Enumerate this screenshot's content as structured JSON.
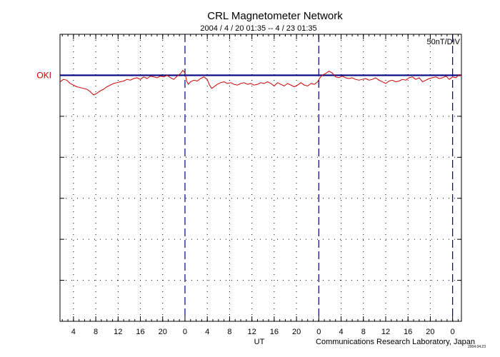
{
  "chart_data": {
    "type": "line",
    "title": "CRL Magnetometer Network",
    "subtitle": "2004 / 4 / 20   01:35 --  4 / 23   01:35",
    "scale_label": "50nT/DIV",
    "xlabel": "UT",
    "credit": "Communications Research Laboratory, Japan",
    "credit_small": "2004.04.23",
    "xlim": [
      1.583,
      73.583
    ],
    "x_unit": "hours since 2004-04-20 00:00 UT",
    "x_tick_labels": [
      {
        "x": 4,
        "label": "4"
      },
      {
        "x": 8,
        "label": "8"
      },
      {
        "x": 12,
        "label": "12"
      },
      {
        "x": 16,
        "label": "16"
      },
      {
        "x": 20,
        "label": "20"
      },
      {
        "x": 24,
        "label": "0"
      },
      {
        "x": 28,
        "label": "4"
      },
      {
        "x": 32,
        "label": "8"
      },
      {
        "x": 36,
        "label": "12"
      },
      {
        "x": 40,
        "label": "16"
      },
      {
        "x": 44,
        "label": "20"
      },
      {
        "x": 48,
        "label": "0"
      },
      {
        "x": 52,
        "label": "4"
      },
      {
        "x": 56,
        "label": "8"
      },
      {
        "x": 60,
        "label": "12"
      },
      {
        "x": 64,
        "label": "16"
      },
      {
        "x": 68,
        "label": "20"
      },
      {
        "x": 72,
        "label": "0"
      }
    ],
    "day_boundaries": [
      24,
      48,
      72
    ],
    "ylim": [
      -300,
      50
    ],
    "y_div": 50,
    "grid": true,
    "colors": {
      "trace": "#cc0000",
      "baseline": "#000080",
      "day_line": "#000080",
      "station": "#cc0000"
    },
    "series": [
      {
        "name": "OKI",
        "baseline": 0,
        "points": [
          [
            1.6,
            -8
          ],
          [
            2.2,
            -5
          ],
          [
            2.8,
            -6
          ],
          [
            3.4,
            -10
          ],
          [
            4,
            -12
          ],
          [
            4.6,
            -14
          ],
          [
            5.2,
            -15
          ],
          [
            5.8,
            -16
          ],
          [
            6.4,
            -17
          ],
          [
            7,
            -20
          ],
          [
            7.6,
            -24
          ],
          [
            8.2,
            -22
          ],
          [
            8.8,
            -19
          ],
          [
            9.4,
            -17
          ],
          [
            10,
            -14
          ],
          [
            10.6,
            -12
          ],
          [
            11.2,
            -10
          ],
          [
            11.8,
            -9
          ],
          [
            12.4,
            -8
          ],
          [
            13,
            -7
          ],
          [
            13.6,
            -5
          ],
          [
            14.2,
            -6
          ],
          [
            14.8,
            -4
          ],
          [
            15.4,
            -3
          ],
          [
            16,
            -5
          ],
          [
            16.6,
            -2
          ],
          [
            17.2,
            -4
          ],
          [
            17.8,
            -1
          ],
          [
            18.4,
            -2
          ],
          [
            19,
            -3
          ],
          [
            19.6,
            -1
          ],
          [
            20.2,
            -2
          ],
          [
            20.8,
            0
          ],
          [
            21.4,
            -3
          ],
          [
            22,
            -5
          ],
          [
            22.6,
            -1
          ],
          [
            23.2,
            2
          ],
          [
            23.6,
            6
          ],
          [
            24,
            3
          ],
          [
            24.3,
            -7
          ],
          [
            24.6,
            -11
          ],
          [
            25,
            -8
          ],
          [
            25.6,
            -6
          ],
          [
            26.2,
            -7
          ],
          [
            26.8,
            -4
          ],
          [
            27.4,
            -2
          ],
          [
            28,
            -5
          ],
          [
            28.4,
            -12
          ],
          [
            28.8,
            -16
          ],
          [
            29.2,
            -14
          ],
          [
            29.8,
            -11
          ],
          [
            30.4,
            -9
          ],
          [
            31,
            -8
          ],
          [
            31.6,
            -10
          ],
          [
            32.2,
            -9
          ],
          [
            32.8,
            -11
          ],
          [
            33.4,
            -12
          ],
          [
            34,
            -10
          ],
          [
            34.6,
            -9
          ],
          [
            35.2,
            -11
          ],
          [
            35.8,
            -10
          ],
          [
            36.4,
            -12
          ],
          [
            37,
            -11
          ],
          [
            37.6,
            -9
          ],
          [
            38.2,
            -10
          ],
          [
            38.8,
            -8
          ],
          [
            39.4,
            -10
          ],
          [
            40,
            -13
          ],
          [
            40.6,
            -9
          ],
          [
            41.2,
            -11
          ],
          [
            41.8,
            -13
          ],
          [
            42.4,
            -10
          ],
          [
            43,
            -12
          ],
          [
            43.6,
            -14
          ],
          [
            44.2,
            -12
          ],
          [
            44.8,
            -9
          ],
          [
            45.4,
            -12
          ],
          [
            46,
            -13
          ],
          [
            46.6,
            -10
          ],
          [
            47.2,
            -11
          ],
          [
            47.8,
            -8
          ],
          [
            48.2,
            -3
          ],
          [
            48.6,
            0
          ],
          [
            49.2,
            2
          ],
          [
            49.8,
            5
          ],
          [
            50.4,
            3
          ],
          [
            51,
            -2
          ],
          [
            51.6,
            -3
          ],
          [
            52.2,
            -1
          ],
          [
            52.8,
            -3
          ],
          [
            53.4,
            -4
          ],
          [
            54,
            -3
          ],
          [
            54.6,
            -5
          ],
          [
            55.2,
            -6
          ],
          [
            55.8,
            -5
          ],
          [
            56.4,
            -4
          ],
          [
            57,
            -6
          ],
          [
            57.6,
            -5
          ],
          [
            58.2,
            -3
          ],
          [
            58.8,
            -6
          ],
          [
            59.4,
            -8
          ],
          [
            60,
            -10
          ],
          [
            60.6,
            -7
          ],
          [
            61.2,
            -6
          ],
          [
            61.8,
            -8
          ],
          [
            62.4,
            -7
          ],
          [
            63,
            -5
          ],
          [
            63.6,
            -6
          ],
          [
            64.2,
            -3
          ],
          [
            64.8,
            -2
          ],
          [
            65.4,
            -5
          ],
          [
            66,
            -3
          ],
          [
            66.6,
            -8
          ],
          [
            67.2,
            -6
          ],
          [
            67.8,
            -4
          ],
          [
            68.4,
            -3
          ],
          [
            69,
            -2
          ],
          [
            69.6,
            -4
          ],
          [
            70.2,
            -3
          ],
          [
            70.8,
            -1
          ],
          [
            71.4,
            -5
          ],
          [
            72,
            -2
          ],
          [
            72.6,
            -3
          ],
          [
            73.2,
            1
          ],
          [
            73.58,
            -1
          ]
        ]
      }
    ]
  }
}
